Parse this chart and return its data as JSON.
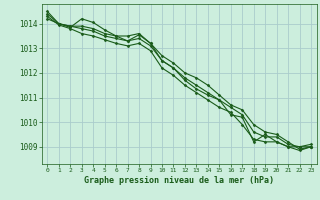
{
  "title": "Graphe pression niveau de la mer (hPa)",
  "background_color": "#cceedd",
  "grid_color": "#aacccc",
  "line_color": "#1a5c1a",
  "marker_color": "#1a5c1a",
  "xlim": [
    -0.5,
    23.5
  ],
  "ylim": [
    1008.3,
    1014.8
  ],
  "yticks": [
    1009,
    1010,
    1011,
    1012,
    1013,
    1014
  ],
  "xticks": [
    0,
    1,
    2,
    3,
    4,
    5,
    6,
    7,
    8,
    9,
    10,
    11,
    12,
    13,
    14,
    15,
    16,
    17,
    18,
    19,
    20,
    21,
    22,
    23
  ],
  "series": [
    [
      1014.5,
      1014.0,
      1013.9,
      1013.9,
      1013.8,
      1013.6,
      1013.5,
      1013.5,
      1013.6,
      1013.2,
      1012.7,
      1012.4,
      1012.0,
      1011.8,
      1011.5,
      1011.1,
      1010.7,
      1010.5,
      1009.9,
      1009.6,
      1009.5,
      1009.2,
      1008.9,
      1009.0
    ],
    [
      1014.2,
      1014.0,
      1013.85,
      1014.2,
      1014.05,
      1013.75,
      1013.5,
      1013.3,
      1013.55,
      1013.2,
      1012.5,
      1012.2,
      1011.7,
      1011.35,
      1011.1,
      1010.9,
      1010.3,
      1010.2,
      1009.2,
      1009.5,
      1009.2,
      1009.0,
      1009.0,
      1009.1
    ],
    [
      1014.4,
      1014.0,
      1013.9,
      1013.8,
      1013.7,
      1013.5,
      1013.4,
      1013.3,
      1013.4,
      1013.1,
      1012.5,
      1012.2,
      1011.8,
      1011.5,
      1011.2,
      1010.9,
      1010.6,
      1010.3,
      1009.6,
      1009.4,
      1009.4,
      1009.1,
      1009.0,
      1009.0
    ],
    [
      1014.3,
      1013.95,
      1013.8,
      1013.6,
      1013.5,
      1013.35,
      1013.2,
      1013.1,
      1013.2,
      1012.9,
      1012.2,
      1011.9,
      1011.5,
      1011.2,
      1010.9,
      1010.6,
      1010.4,
      1009.9,
      1009.3,
      1009.2,
      1009.2,
      1009.0,
      1008.85,
      1009.0
    ]
  ]
}
